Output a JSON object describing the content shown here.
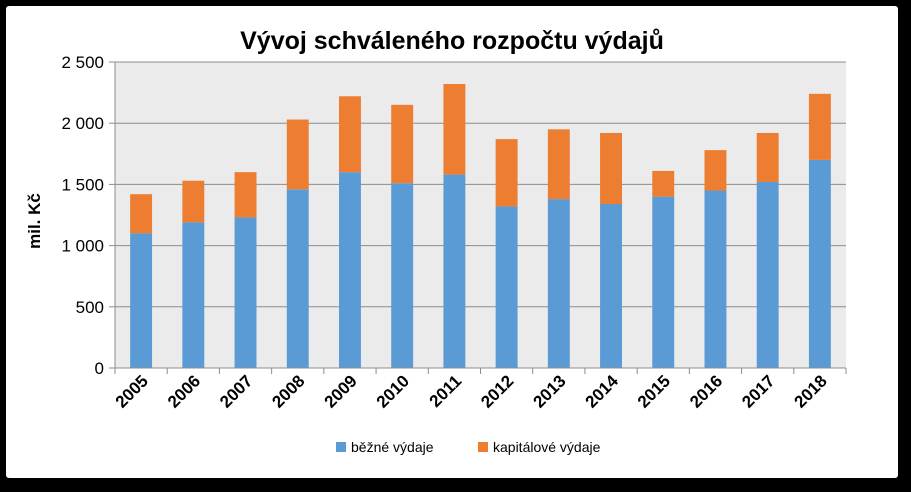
{
  "chart_data": {
    "type": "bar",
    "stacked": true,
    "title": "Vývoj schváleného rozpočtu výdajů",
    "xlabel": "",
    "ylabel": "mil. Kč",
    "ylim": [
      0,
      2500
    ],
    "yticks": [
      0,
      500,
      1000,
      1500,
      2000,
      2500
    ],
    "ytick_labels": [
      "0",
      "500",
      "1 000",
      "1 500",
      "2 000",
      "2 500"
    ],
    "grid": true,
    "legend_position": "bottom",
    "plot_background": "#ebebeb",
    "categories": [
      "2005",
      "2006",
      "2007",
      "2008",
      "2009",
      "2010",
      "2011",
      "2012",
      "2013",
      "2014",
      "2015",
      "2016",
      "2017",
      "2018"
    ],
    "series": [
      {
        "name": "běžné výdaje",
        "color": "#5b9bd5",
        "values": [
          1100,
          1190,
          1230,
          1460,
          1600,
          1510,
          1580,
          1320,
          1380,
          1340,
          1400,
          1450,
          1520,
          1700
        ]
      },
      {
        "name": "kapitálové výdaje",
        "color": "#ed7d31",
        "values": [
          320,
          340,
          370,
          570,
          620,
          640,
          740,
          550,
          570,
          580,
          210,
          330,
          400,
          540
        ]
      }
    ]
  }
}
